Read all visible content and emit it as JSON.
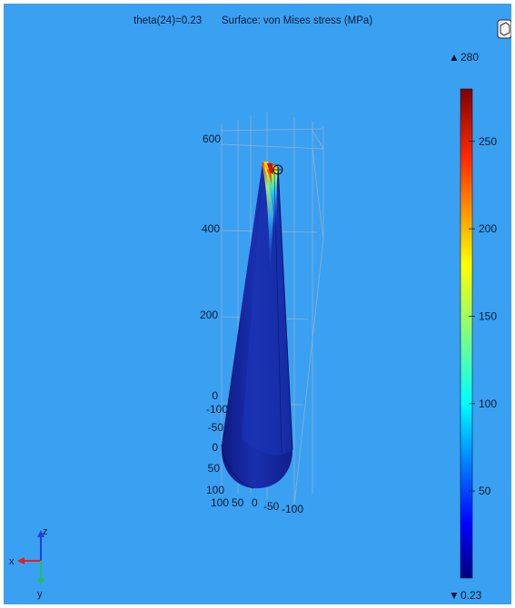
{
  "title": {
    "parameter": "theta(24)=0.23",
    "surface": "Surface: von Mises stress (MPa)"
  },
  "colorbar": {
    "max_label": "280",
    "min_label": "0.23",
    "max_marker": "▲",
    "min_marker": "▼",
    "ticks": [
      "250",
      "200",
      "150",
      "100",
      "50"
    ],
    "tick_values": [
      250,
      200,
      150,
      100,
      50
    ],
    "min_value": 0.23,
    "max_value": 280,
    "colormap": "rainbow"
  },
  "axes": {
    "z_ticks": [
      "600",
      "400",
      "200",
      "0"
    ],
    "y_ticks": [
      "-100",
      "-50",
      "0",
      "50",
      "100"
    ],
    "x_ticks": [
      "100",
      "50",
      "0",
      "-50",
      "-100"
    ]
  },
  "triad": {
    "x_label": "x",
    "y_label": "y",
    "z_label": "z"
  },
  "colors": {
    "background": "#3aa0f2",
    "model_base": "#13249a",
    "model_dark": "#0a1470",
    "grid": "#9bb4c9",
    "triad_x": "#e02020",
    "triad_y": "#20c060",
    "triad_z": "#2040e0"
  },
  "icons": {
    "corner_icon": "view-cube-icon"
  }
}
